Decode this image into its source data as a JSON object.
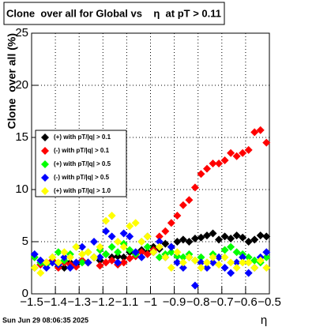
{
  "chart_data": {
    "type": "scatter",
    "title": "Clone  over all for Global vs    η  at pT > 0.11",
    "y_label": "Clone  over all (%)",
    "x_label": "η",
    "timestamp": "Sun Jun 29 08:06:35 2025",
    "x": [
      -1.4875,
      -1.4625,
      -1.4375,
      -1.4125,
      -1.3875,
      -1.3625,
      -1.3375,
      -1.3125,
      -1.2875,
      -1.2625,
      -1.2375,
      -1.2125,
      -1.1875,
      -1.1625,
      -1.1375,
      -1.1125,
      -1.0875,
      -1.0625,
      -1.0375,
      -1.0125,
      -0.9875,
      -0.9625,
      -0.9375,
      -0.9125,
      -0.8875,
      -0.8625,
      -0.8375,
      -0.8125,
      -0.7875,
      -0.7625,
      -0.7375,
      -0.7125,
      -0.6875,
      -0.6625,
      -0.6375,
      -0.6125,
      -0.5875,
      -0.5625,
      -0.5375,
      -0.5125
    ],
    "series": [
      {
        "name": "(+) with pT/|q| > 0.1",
        "color": "#000000",
        "values": [
          2.5,
          2.8,
          3.0,
          3.2,
          2.6,
          2.5,
          3.0,
          2.8,
          3.2,
          3.0,
          3.5,
          3.2,
          3.8,
          3.5,
          3.6,
          3.5,
          4.0,
          3.8,
          4.2,
          4.0,
          4.5,
          4.3,
          4.8,
          4.5,
          5.0,
          5.2,
          5.0,
          5.3,
          5.4,
          5.6,
          5.8,
          5.2,
          5.5,
          5.3,
          5.6,
          5.4,
          5.0,
          5.2,
          5.6,
          5.5
        ]
      },
      {
        "name": "(-) with pT/|q| > 0.1",
        "color": "#ff0000",
        "values": [
          3.5,
          2.8,
          3.0,
          3.2,
          2.5,
          3.0,
          2.8,
          2.6,
          3.2,
          3.0,
          3.5,
          2.7,
          3.0,
          3.2,
          2.8,
          3.0,
          3.4,
          3.6,
          4.0,
          3.8,
          4.2,
          5.5,
          6.0,
          6.8,
          7.5,
          8.5,
          9.0,
          10.2,
          11.5,
          12.0,
          12.5,
          12.5,
          12.8,
          13.5,
          13.2,
          13.5,
          13.8,
          15.5,
          15.7,
          14.5
        ]
      },
      {
        "name": "(+) with pT/|q| > 0.5",
        "color": "#00ff00",
        "values": [
          3.5,
          3.0,
          2.8,
          3.5,
          4.0,
          3.2,
          3.8,
          4.5,
          3.0,
          4.0,
          3.5,
          4.2,
          3.8,
          4.5,
          4.0,
          4.8,
          4.2,
          3.8,
          5.0,
          4.5,
          4.0,
          3.5,
          3.8,
          4.0,
          3.6,
          3.5,
          3.8,
          3.2,
          3.5,
          3.0,
          3.8,
          3.5,
          4.2,
          4.5,
          4.0,
          3.8,
          3.5,
          3.2,
          3.0,
          3.5
        ]
      },
      {
        "name": "(-) with pT/|q| > 0.5",
        "color": "#0000ff",
        "values": [
          3.8,
          3.2,
          2.5,
          3.0,
          2.8,
          3.5,
          2.5,
          3.0,
          4.5,
          3.0,
          5.0,
          3.5,
          6.0,
          5.5,
          3.0,
          5.8,
          5.5,
          4.0,
          3.5,
          5.5,
          4.0,
          5.0,
          3.5,
          4.5,
          3.0,
          2.5,
          3.5,
          0.8,
          3.0,
          2.5,
          3.0,
          3.5,
          2.5,
          2.0,
          3.0,
          3.5,
          2.0,
          2.5,
          3.5,
          4.0
        ]
      },
      {
        "name": "(+) with pT/|q| > 1.0",
        "color": "#ffff00",
        "values": [
          2.5,
          2.0,
          3.0,
          3.5,
          3.0,
          4.0,
          3.5,
          4.5,
          3.8,
          4.0,
          3.5,
          4.5,
          7.0,
          7.5,
          5.0,
          4.5,
          6.5,
          6.8,
          5.0,
          5.5,
          4.0,
          4.5,
          3.5,
          2.5,
          4.0,
          3.0,
          3.5,
          3.2,
          2.5,
          3.0,
          3.5,
          2.8,
          3.5,
          3.0,
          2.5,
          3.0,
          3.0,
          2.5,
          3.2,
          2.5
        ]
      }
    ],
    "xlim": [
      -1.5,
      -0.5
    ],
    "xticks": [
      {
        "value": -1.5,
        "label": "−1.5"
      },
      {
        "value": -1.4,
        "label": "−1.4"
      },
      {
        "value": -1.3,
        "label": "−1.3"
      },
      {
        "value": -1.2,
        "label": "−1.2"
      },
      {
        "value": -1.1,
        "label": "−1.1"
      },
      {
        "value": -1,
        "label": "−1"
      },
      {
        "value": -0.9,
        "label": "−0.9"
      },
      {
        "value": -0.8,
        "label": "−0.8"
      },
      {
        "value": -0.7,
        "label": "−0.7"
      },
      {
        "value": -0.6,
        "label": "−0.6"
      },
      {
        "value": -0.5,
        "label": "−0.5"
      }
    ],
    "ylim": [
      0,
      25
    ],
    "yticks": [
      0,
      5,
      10,
      15,
      20,
      25
    ],
    "grid": true
  }
}
